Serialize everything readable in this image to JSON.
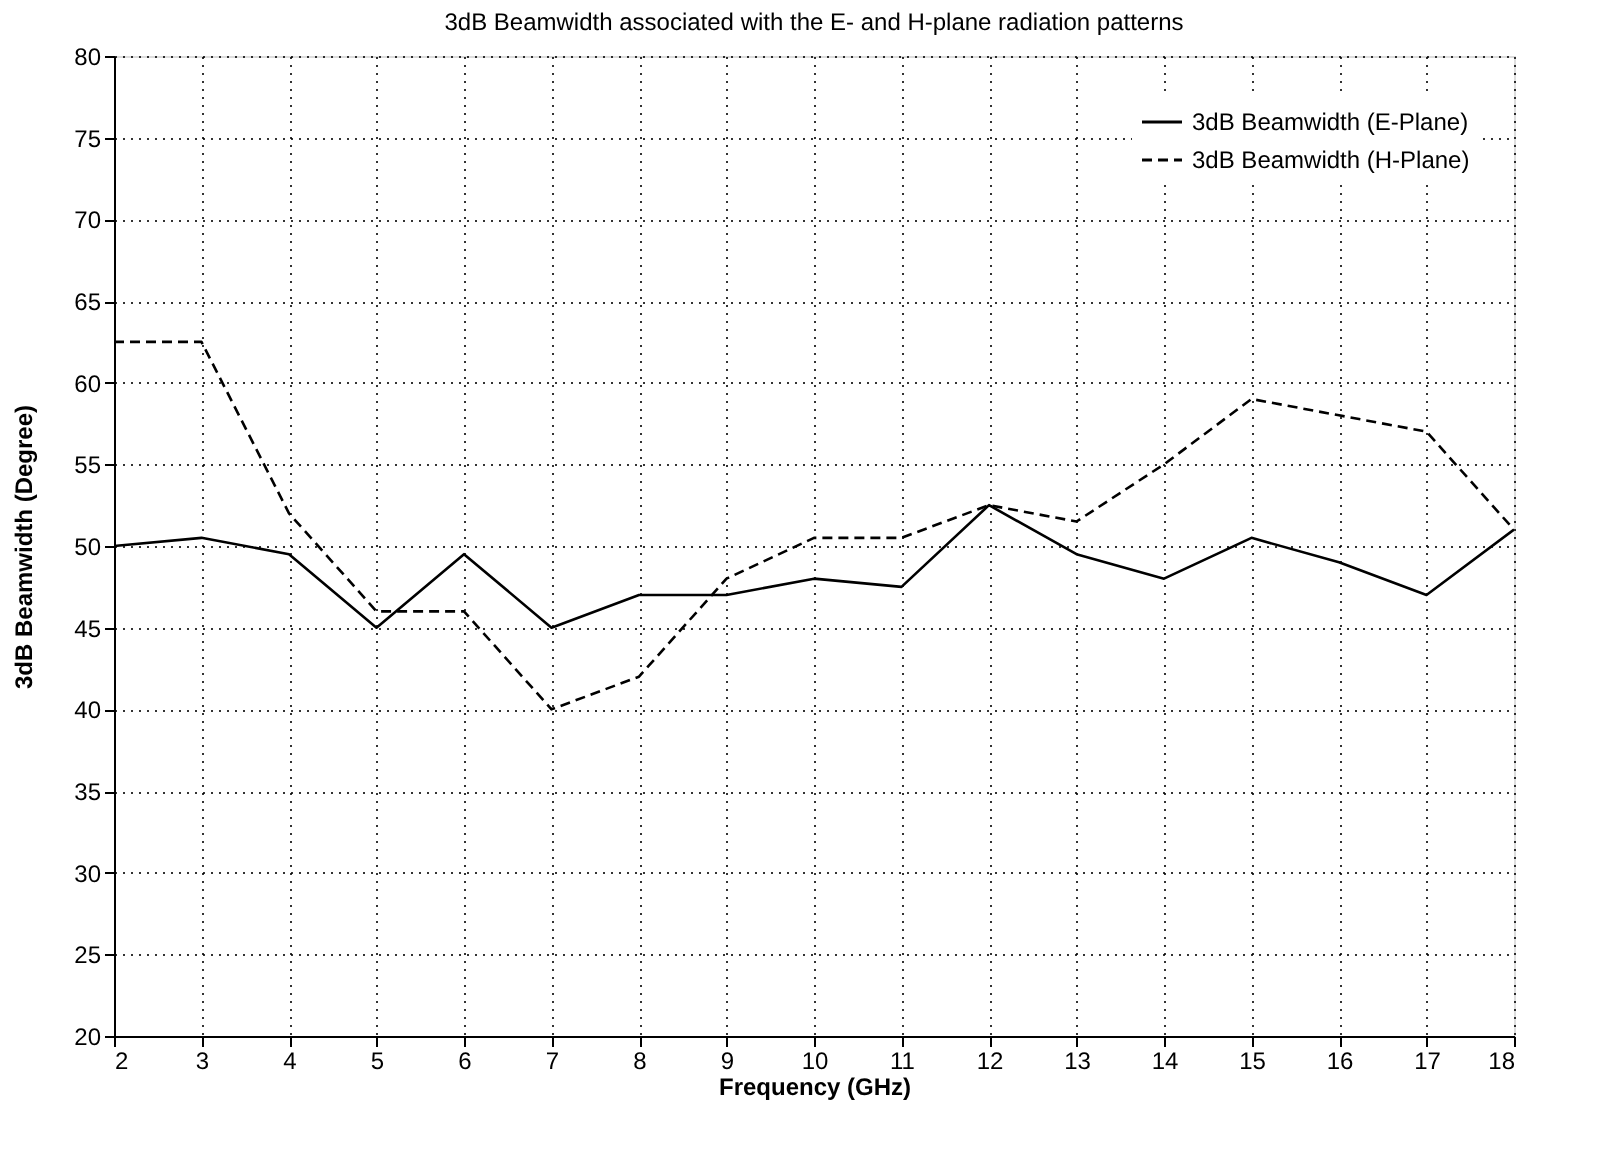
{
  "chart_data": {
    "type": "line",
    "title": "3dB Beamwidth associated with the E- and H-plane radiation patterns",
    "xlabel": "Frequency (GHz)",
    "ylabel": "3dB Beamwidth (Degree)",
    "x": [
      2,
      3,
      4,
      5,
      6,
      7,
      8,
      9,
      10,
      11,
      12,
      13,
      14,
      15,
      16,
      17,
      18
    ],
    "series": [
      {
        "name": "3dB Beamwidth (E-Plane)",
        "color": "#000000",
        "line_style": "solid",
        "values": [
          50,
          50.5,
          49.5,
          45,
          49.5,
          45,
          47,
          47,
          48,
          47.5,
          52.5,
          49.5,
          48,
          50.5,
          49,
          47,
          51
        ]
      },
      {
        "name": "3dB Beamwidth (H-Plane)",
        "color": "#000000",
        "line_style": "dashed",
        "values": [
          62.5,
          62.5,
          52,
          46,
          46,
          40,
          42,
          48,
          50.5,
          50.5,
          52.5,
          51.5,
          55,
          59,
          58,
          57,
          51
        ]
      }
    ],
    "xlim": [
      2,
      18
    ],
    "xticks": [
      2,
      3,
      4,
      5,
      6,
      7,
      8,
      9,
      10,
      11,
      12,
      13,
      14,
      15,
      16,
      17,
      18
    ],
    "ylim": [
      20,
      80
    ],
    "yticks": [
      20,
      25,
      30,
      35,
      40,
      45,
      50,
      55,
      60,
      65,
      70,
      75,
      80
    ],
    "grid": true,
    "legend": "top right",
    "marker": "none"
  }
}
